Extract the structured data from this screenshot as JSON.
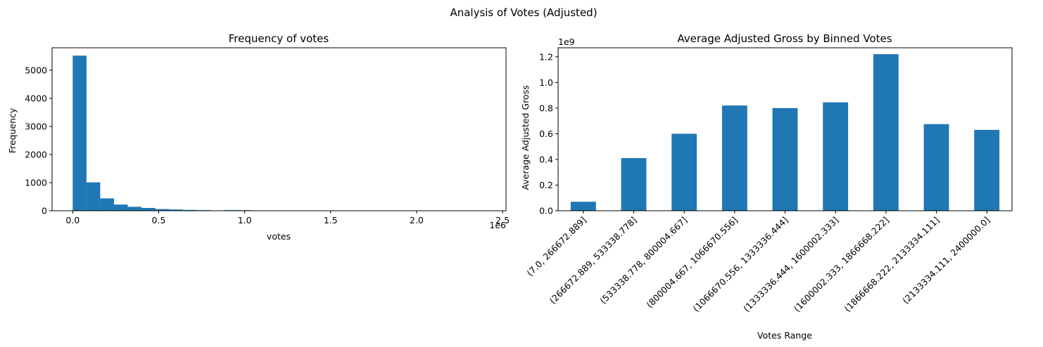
{
  "figure": {
    "suptitle": "Analysis of Votes (Adjusted)"
  },
  "chart_data": [
    {
      "type": "bar",
      "subtype": "histogram",
      "title": "Frequency of votes",
      "xlabel": "votes",
      "ylabel": "Frequency",
      "x_offset_label": "1e6",
      "xlim": [
        -0.12,
        2.52
      ],
      "ylim": [
        0,
        5800
      ],
      "xticks": [
        0.0,
        0.5,
        1.0,
        1.5,
        2.0,
        2.5
      ],
      "xtick_labels": [
        "0.0",
        "0.5",
        "1.0",
        "1.5",
        "2.0",
        "2.5"
      ],
      "yticks": [
        0,
        1000,
        2000,
        3000,
        4000,
        5000
      ],
      "ytick_labels": [
        "0",
        "1000",
        "2000",
        "3000",
        "4000",
        "5000"
      ],
      "bin_width": 0.08,
      "bin_starts": [
        0.0,
        0.08,
        0.16,
        0.24,
        0.32,
        0.4,
        0.48,
        0.56,
        0.64,
        0.72,
        0.8,
        0.88,
        0.96,
        1.04,
        1.12,
        1.2,
        1.28,
        1.36,
        1.44,
        1.52,
        1.6,
        1.68,
        1.76,
        1.84,
        1.92,
        2.0,
        2.08,
        2.16,
        2.24,
        2.32
      ],
      "values": [
        5520,
        1010,
        440,
        220,
        140,
        100,
        60,
        45,
        30,
        20,
        12,
        22,
        20,
        5,
        3,
        2,
        2,
        1,
        1,
        1,
        1,
        0,
        0,
        0,
        0,
        0,
        0,
        0,
        0,
        1
      ],
      "bar_color": "#1f77b4",
      "grid": false
    },
    {
      "type": "bar",
      "title": "Average Adjusted Gross by Binned Votes",
      "xlabel": "Votes Range",
      "ylabel": "Average Adjusted Gross",
      "y_offset_label": "1e9",
      "categories": [
        "(7.0, 266672.889]",
        "(266672.889, 533338.778]",
        "(533338.778, 800004.667]",
        "(800004.667, 1066670.556]",
        "(1066670.556, 1333336.444]",
        "(1333336.444, 1600002.333]",
        "(1600002.333, 1866668.222]",
        "(1866668.222, 2133334.111]",
        "(2133334.111, 2400000.0]"
      ],
      "values": [
        0.07,
        0.41,
        0.6,
        0.82,
        0.8,
        0.845,
        1.22,
        0.675,
        0.63
      ],
      "ylim": [
        0,
        1.27
      ],
      "yticks": [
        0.0,
        0.2,
        0.4,
        0.6,
        0.8,
        1.0,
        1.2
      ],
      "ytick_labels": [
        "0.0",
        "0.2",
        "0.4",
        "0.6",
        "0.8",
        "1.0",
        "1.2"
      ],
      "bar_color": "#1f77b4",
      "xtick_rotation": 45,
      "grid": false
    }
  ]
}
